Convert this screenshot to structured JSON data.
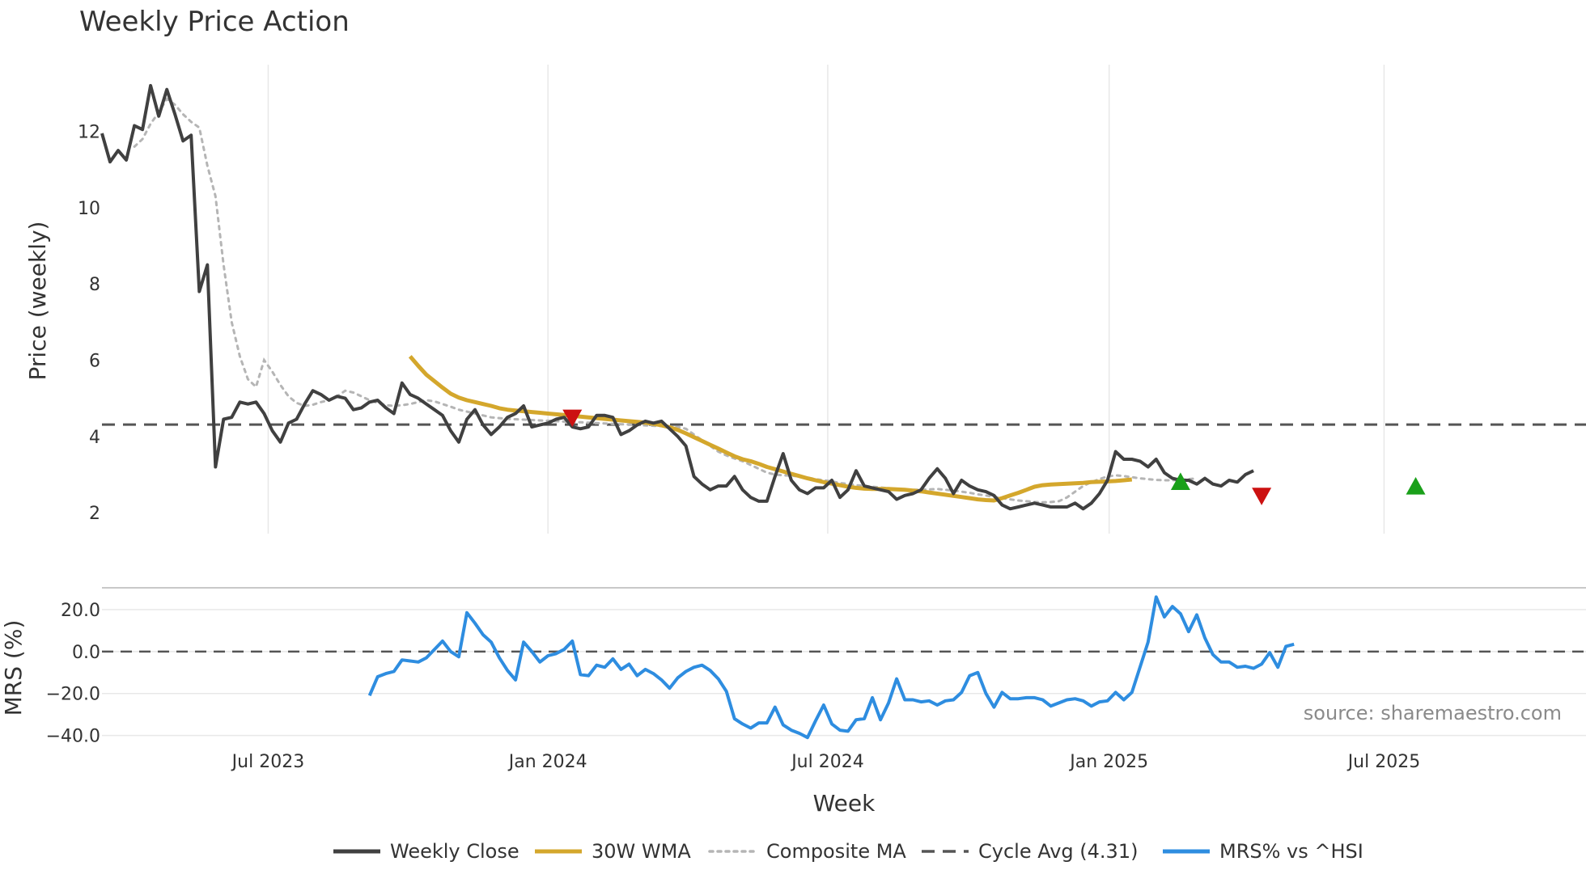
{
  "chart_data": {
    "type": "line",
    "title": "Weekly Price Action",
    "xlabel": "Week",
    "source": "source: sharemaestro.com",
    "x_ticks": [
      {
        "label": "Jul 2023",
        "week": 20.5
      },
      {
        "label": "Jan 2024",
        "week": 55.0
      },
      {
        "label": "Jul 2024",
        "week": 89.5
      },
      {
        "label": "Jan 2025",
        "week": 124.2
      },
      {
        "label": "Jul 2025",
        "week": 158.1
      }
    ],
    "week_range": [
      0,
      183
    ],
    "colors": {
      "close": "#404040",
      "wma": "#d4a72c",
      "composite": "#b5b5b5",
      "cycle": "#555555",
      "mrs": "#2e8de0",
      "buy": "#1aa01a",
      "sell": "#cc1111",
      "grid": "#e8e8e8"
    },
    "price_panel": {
      "ylabel": "Price (weekly)",
      "ylim": [
        1.45,
        13.75
      ],
      "y_ticks": [
        2,
        4,
        6,
        8,
        10,
        12
      ],
      "cycle_avg": 4.31,
      "series": {
        "close": {
          "name": "Weekly Close",
          "start_week": 0,
          "values": [
            11.95,
            11.2,
            11.5,
            11.25,
            12.15,
            12.05,
            13.2,
            12.4,
            13.1,
            12.45,
            11.75,
            11.9,
            7.8,
            8.5,
            3.2,
            4.45,
            4.5,
            4.9,
            4.85,
            4.9,
            4.6,
            4.15,
            3.85,
            4.35,
            4.45,
            4.85,
            5.2,
            5.1,
            4.95,
            5.05,
            5.0,
            4.7,
            4.75,
            4.9,
            4.95,
            4.75,
            4.6,
            5.4,
            5.1,
            5.0,
            4.85,
            4.7,
            4.55,
            4.15,
            3.85,
            4.45,
            4.7,
            4.3,
            4.05,
            4.25,
            4.5,
            4.6,
            4.8,
            4.25,
            4.3,
            4.35,
            4.45,
            4.5,
            4.25,
            4.2,
            4.25,
            4.55,
            4.55,
            4.5,
            4.05,
            4.15,
            4.3,
            4.4,
            4.35,
            4.4,
            4.2,
            4.0,
            3.75,
            2.95,
            2.75,
            2.6,
            2.7,
            2.7,
            2.95,
            2.6,
            2.4,
            2.3,
            2.3,
            2.95,
            3.55,
            2.85,
            2.6,
            2.5,
            2.65,
            2.65,
            2.85,
            2.4,
            2.6,
            3.1,
            2.7,
            2.65,
            2.6,
            2.55,
            2.35,
            2.45,
            2.5,
            2.6,
            2.9,
            3.15,
            2.9,
            2.5,
            2.85,
            2.7,
            2.6,
            2.55,
            2.45,
            2.2,
            2.1,
            2.15,
            2.2,
            2.25,
            2.2,
            2.15,
            2.15,
            2.15,
            2.25,
            2.1,
            2.25,
            2.5,
            2.85,
            3.6,
            3.4,
            3.4,
            3.35,
            3.2,
            3.4,
            3.05,
            2.9,
            2.85,
            2.85,
            2.75,
            2.9,
            2.75,
            2.7,
            2.85,
            2.8,
            3.0,
            3.1
          ]
        },
        "wma": {
          "name": "30W WMA",
          "start_week": 38,
          "values": [
            6.1,
            5.85,
            5.62,
            5.45,
            5.28,
            5.12,
            5.02,
            4.95,
            4.9,
            4.85,
            4.8,
            4.74,
            4.7,
            4.68,
            4.66,
            4.64,
            4.62,
            4.6,
            4.58,
            4.56,
            4.54,
            4.52,
            4.5,
            4.48,
            4.46,
            4.44,
            4.42,
            4.4,
            4.38,
            4.36,
            4.33,
            4.29,
            4.24,
            4.17,
            4.08,
            3.98,
            3.88,
            3.78,
            3.68,
            3.58,
            3.48,
            3.4,
            3.35,
            3.28,
            3.2,
            3.14,
            3.08,
            3.02,
            2.96,
            2.9,
            2.85,
            2.8,
            2.76,
            2.72,
            2.68,
            2.65,
            2.63,
            2.62,
            2.62,
            2.62,
            2.61,
            2.6,
            2.58,
            2.56,
            2.53,
            2.5,
            2.47,
            2.44,
            2.41,
            2.38,
            2.35,
            2.33,
            2.32,
            2.38,
            2.45,
            2.52,
            2.6,
            2.68,
            2.72,
            2.74,
            2.75,
            2.76,
            2.77,
            2.78,
            2.8,
            2.81,
            2.82,
            2.83,
            2.85,
            2.87
          ]
        },
        "composite": {
          "name": "Composite MA",
          "start_week": 4,
          "values": [
            11.6,
            11.8,
            12.2,
            12.5,
            12.85,
            12.7,
            12.45,
            12.25,
            12.1,
            11.1,
            10.3,
            8.5,
            7.0,
            6.1,
            5.5,
            5.3,
            6.0,
            5.7,
            5.35,
            5.05,
            4.88,
            4.8,
            4.83,
            4.9,
            4.95,
            5.05,
            5.2,
            5.15,
            5.05,
            4.95,
            4.88,
            4.82,
            4.8,
            4.82,
            4.85,
            4.9,
            4.95,
            4.92,
            4.85,
            4.78,
            4.7,
            4.65,
            4.6,
            4.55,
            4.5,
            4.48,
            4.46,
            4.45,
            4.44,
            4.43,
            4.42,
            4.41,
            4.4,
            4.39,
            4.38,
            4.37,
            4.36,
            4.35,
            4.34,
            4.33,
            4.32,
            4.31,
            4.3,
            4.29,
            4.28,
            4.27,
            4.26,
            4.25,
            4.2,
            4.05,
            3.9,
            3.75,
            3.6,
            3.5,
            3.42,
            3.35,
            3.25,
            3.15,
            3.05,
            3.0,
            2.98,
            2.97,
            2.95,
            2.92,
            2.88,
            2.85,
            2.82,
            2.78,
            2.75,
            2.72,
            2.7,
            2.68,
            2.66,
            2.64,
            2.62,
            2.6,
            2.6,
            2.6,
            2.61,
            2.62,
            2.6,
            2.58,
            2.55,
            2.52,
            2.48,
            2.45,
            2.41,
            2.38,
            2.35,
            2.32,
            2.3,
            2.28,
            2.27,
            2.28,
            2.3,
            2.4,
            2.55,
            2.7,
            2.8,
            2.88,
            2.95,
            2.98,
            2.96,
            2.93,
            2.9,
            2.88,
            2.86,
            2.85,
            2.85,
            2.86,
            2.88,
            2.9
          ]
        }
      },
      "signals": [
        {
          "type": "sell",
          "week": 58,
          "value": 4.5
        },
        {
          "type": "buy",
          "week": 133,
          "value": 2.8
        },
        {
          "type": "sell",
          "week": 143,
          "value": 2.45
        },
        {
          "type": "buy",
          "week": 162,
          "value": 2.68
        }
      ]
    },
    "mrs_panel": {
      "ylabel": "MRS (%)",
      "ylim": [
        -44,
        30
      ],
      "y_ticks": [
        "20.0",
        "0.0",
        "−20.0",
        "−40.0"
      ],
      "y_tick_values": [
        20,
        0,
        -20,
        -40
      ],
      "zero_line": 0,
      "series": {
        "name": "MRS% vs ^HSI",
        "start_week": 33,
        "values": [
          -21,
          -12,
          -10.5,
          -9.5,
          -4,
          -4.5,
          -5,
          -3,
          1,
          5,
          0,
          -2.5,
          18.5,
          13.5,
          8,
          4.5,
          -3,
          -9,
          -13.5,
          4.5,
          0,
          -5,
          -2,
          -1,
          1,
          5,
          -11,
          -11.5,
          -6.5,
          -7.5,
          -3.5,
          -8.5,
          -6,
          -11.5,
          -8.5,
          -10.5,
          -13.5,
          -17.5,
          -12.5,
          -9.5,
          -7.5,
          -6.5,
          -9,
          -13,
          -19,
          -32,
          -34.5,
          -36.5,
          -34,
          -34,
          -26.5,
          -35,
          -37.5,
          -39,
          -41,
          -33,
          -25.5,
          -34.5,
          -37.5,
          -38,
          -32.5,
          -32,
          -22,
          -32.5,
          -24.5,
          -13,
          -23,
          -23,
          -24,
          -23.5,
          -25.5,
          -23.5,
          -23,
          -19.5,
          -11.5,
          -10,
          -20,
          -26.5,
          -19.5,
          -22.5,
          -22.5,
          -22,
          -22,
          -23,
          -26,
          -24.5,
          -23,
          -22.5,
          -23.5,
          -26,
          -24,
          -23.5,
          -19.5,
          -23,
          -19.5,
          -7.5,
          4.5,
          26,
          16.5,
          21.5,
          18,
          9.5,
          17.5,
          6.5,
          -1.5,
          -5,
          -5,
          -7.5,
          -7,
          -8,
          -6,
          -0.5,
          -7.5,
          2.5,
          3.5
        ]
      }
    },
    "legend": [
      {
        "label": "Weekly Close",
        "style": "solid-dark"
      },
      {
        "label": "30W WMA",
        "style": "solid-gold"
      },
      {
        "label": "Composite MA",
        "style": "dotted-grey"
      },
      {
        "label": "Cycle Avg (4.31)",
        "style": "dashed-dark"
      },
      {
        "label": "MRS% vs ^HSI",
        "style": "solid-blue"
      }
    ]
  }
}
